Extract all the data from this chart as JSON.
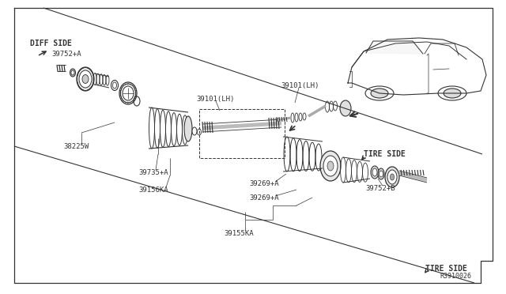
{
  "bg_color": "#ffffff",
  "border_color": "#222222",
  "text_color": "#222222",
  "dark": "#333333",
  "gray": "#777777",
  "font_size": 6.5,
  "labels": {
    "diff_side": "DIFF SIDE",
    "tire_side_top": "TIRE SIDE",
    "tire_side_bottom": "TIRE SIDE",
    "p1": "39752+A",
    "p2": "38225W",
    "p3": "39735+A",
    "p4": "39156KA",
    "p5a": "39101(LH)",
    "p5b": "39101(LH)",
    "p6a": "39269+A",
    "p6b": "39269+A",
    "p7": "39155KA",
    "p8": "39752+B",
    "ref": "R3910026"
  }
}
